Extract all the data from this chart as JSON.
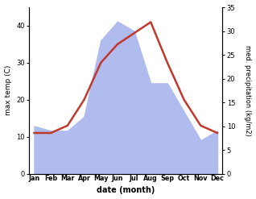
{
  "months": [
    "Jan",
    "Feb",
    "Mar",
    "Apr",
    "May",
    "Jun",
    "Jul",
    "Aug",
    "Sep",
    "Oct",
    "Nov",
    "Dec"
  ],
  "max_temp": [
    11,
    11,
    13,
    20,
    30,
    35,
    38,
    41,
    30,
    20,
    13,
    11
  ],
  "precipitation": [
    10,
    9,
    9,
    12,
    28,
    32,
    30,
    19,
    19,
    13,
    7,
    9
  ],
  "temp_color": "#c0392b",
  "precip_fill_color": "#b0bbee",
  "xlabel": "date (month)",
  "ylabel_left": "max temp (C)",
  "ylabel_right": "med. precipitation (kg/m2)",
  "ylim_left": [
    0,
    45
  ],
  "ylim_right": [
    0,
    35
  ],
  "yticks_left": [
    0,
    10,
    20,
    30,
    40
  ],
  "yticks_right": [
    0,
    5,
    10,
    15,
    20,
    25,
    30,
    35
  ],
  "temp_linewidth": 1.8,
  "background_color": "#ffffff"
}
